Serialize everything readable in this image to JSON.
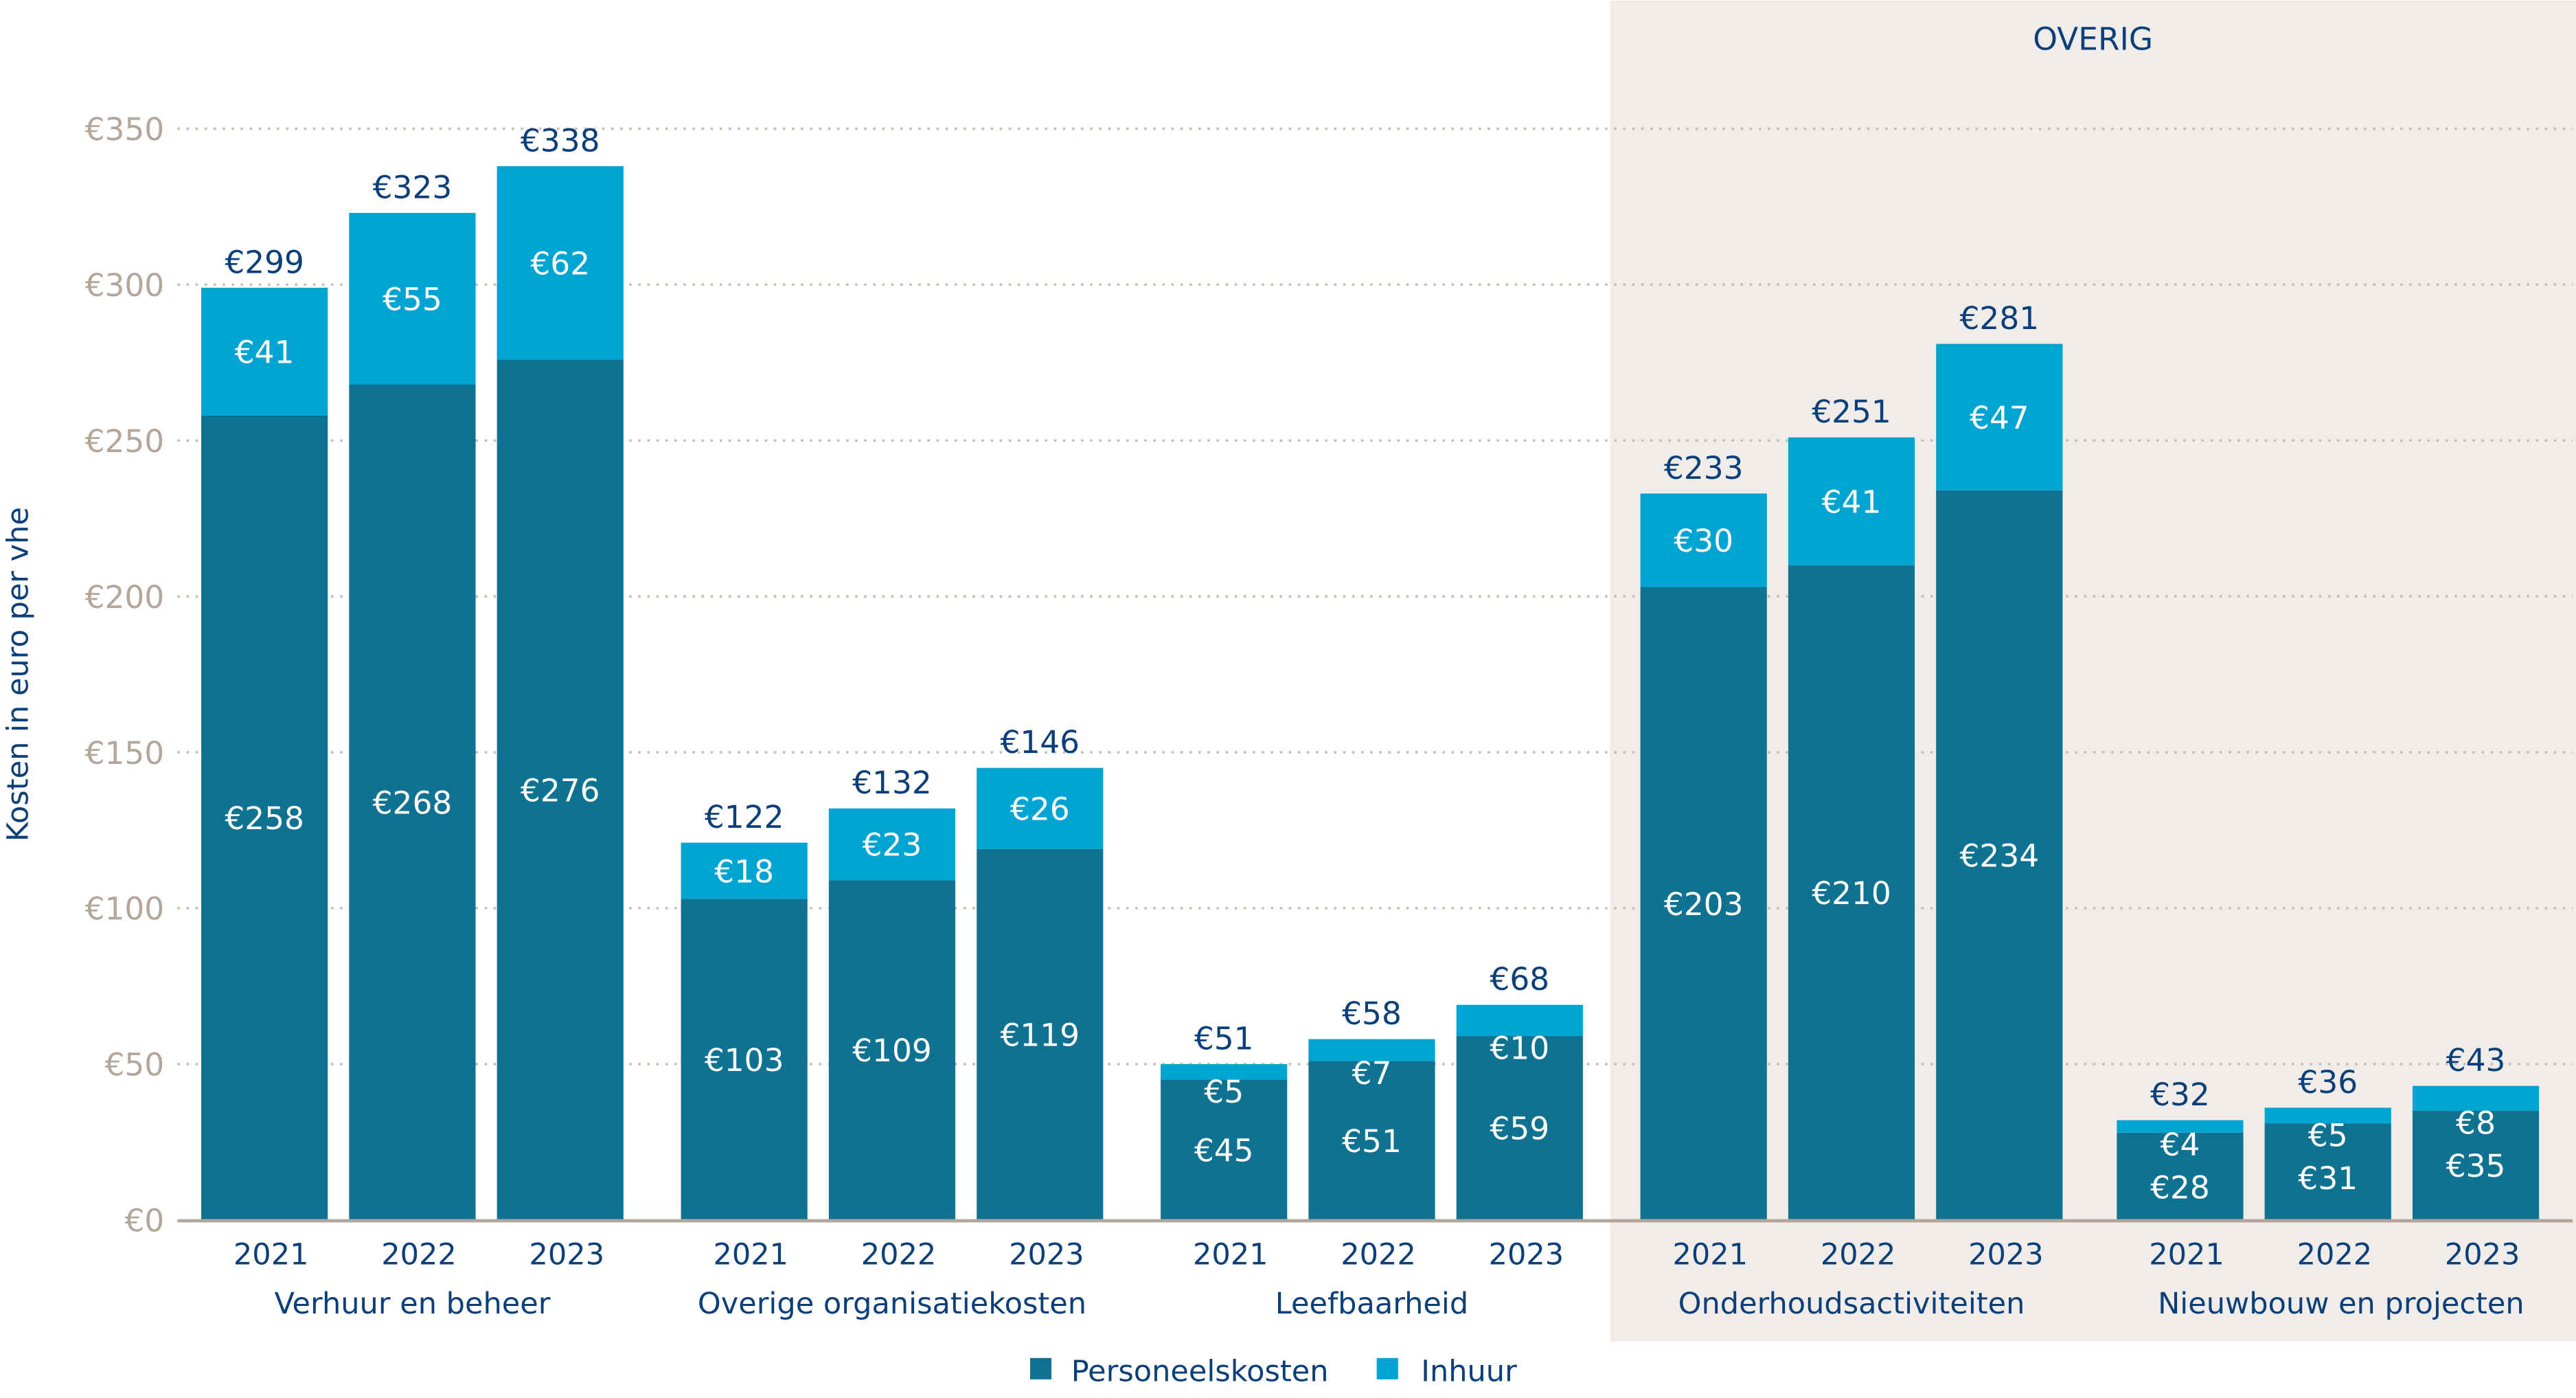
{
  "chart_data": {
    "type": "bar",
    "stacked": true,
    "ylabel": "Kosten in euro per vhe",
    "ylim": [
      0,
      350
    ],
    "yticks": [
      0,
      50,
      100,
      150,
      200,
      250,
      300,
      350
    ],
    "ytick_labels": [
      "€0",
      "€50",
      "€100",
      "€150",
      "€200",
      "€250",
      "€300",
      "€350"
    ],
    "grid": "horizontal dotted",
    "legend_position": "bottom",
    "highlight_region": {
      "label": "OVERIG",
      "groups": [
        "Onderhoudsactiviteiten",
        "Nieuwbouw en projecten"
      ],
      "color": "#f0ece9"
    },
    "groups": [
      {
        "name": "Verhuur en beheer",
        "years": [
          "2021",
          "2022",
          "2023"
        ],
        "personeelskosten": [
          258,
          268,
          276
        ],
        "inhuur": [
          41,
          55,
          62
        ],
        "totals": [
          299,
          323,
          338
        ]
      },
      {
        "name": "Overige organisatiekosten",
        "years": [
          "2021",
          "2022",
          "2023"
        ],
        "personeelskosten": [
          103,
          109,
          119
        ],
        "inhuur": [
          18,
          23,
          26
        ],
        "totals": [
          122,
          132,
          146
        ]
      },
      {
        "name": "Leefbaarheid",
        "years": [
          "2021",
          "2022",
          "2023"
        ],
        "personeelskosten": [
          45,
          51,
          59
        ],
        "inhuur": [
          5,
          7,
          10
        ],
        "totals": [
          51,
          58,
          68
        ]
      },
      {
        "name": "Onderhoudsactiviteiten",
        "years": [
          "2021",
          "2022",
          "2023"
        ],
        "personeelskosten": [
          203,
          210,
          234
        ],
        "inhuur": [
          30,
          41,
          47
        ],
        "totals": [
          233,
          251,
          281
        ]
      },
      {
        "name": "Nieuwbouw en projecten",
        "years": [
          "2021",
          "2022",
          "2023"
        ],
        "personeelskosten": [
          28,
          31,
          35
        ],
        "inhuur": [
          4,
          5,
          8
        ],
        "totals": [
          32,
          36,
          43
        ]
      }
    ],
    "series": [
      {
        "name": "Personeelskosten",
        "color": "#0f7290"
      },
      {
        "name": "Inhuur",
        "color": "#00a4d3"
      }
    ],
    "currency_symbol": "€"
  }
}
